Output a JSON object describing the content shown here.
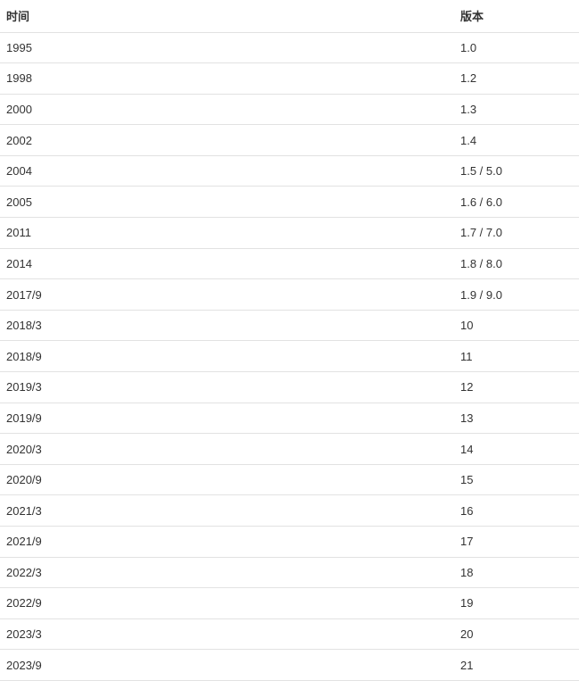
{
  "table": {
    "headers": {
      "time": "时间",
      "version": "版本"
    },
    "rows": [
      {
        "time": "1995",
        "version": "1.0"
      },
      {
        "time": "1998",
        "version": "1.2"
      },
      {
        "time": "2000",
        "version": "1.3"
      },
      {
        "time": "2002",
        "version": "1.4"
      },
      {
        "time": "2004",
        "version": "1.5 / 5.0"
      },
      {
        "time": "2005",
        "version": "1.6 / 6.0"
      },
      {
        "time": "2011",
        "version": "1.7 / 7.0"
      },
      {
        "time": "2014",
        "version": "1.8 / 8.0"
      },
      {
        "time": "2017/9",
        "version": "1.9 / 9.0"
      },
      {
        "time": "2018/3",
        "version": "10"
      },
      {
        "time": "2018/9",
        "version": "11"
      },
      {
        "time": "2019/3",
        "version": "12"
      },
      {
        "time": "2019/9",
        "version": "13"
      },
      {
        "time": "2020/3",
        "version": "14"
      },
      {
        "time": "2020/9",
        "version": "15"
      },
      {
        "time": "2021/3",
        "version": "16"
      },
      {
        "time": "2021/9",
        "version": "17"
      },
      {
        "time": "2022/3",
        "version": "18"
      },
      {
        "time": "2022/9",
        "version": "19"
      },
      {
        "time": "2023/3",
        "version": "20"
      },
      {
        "time": "2023/9",
        "version": "21"
      }
    ]
  }
}
